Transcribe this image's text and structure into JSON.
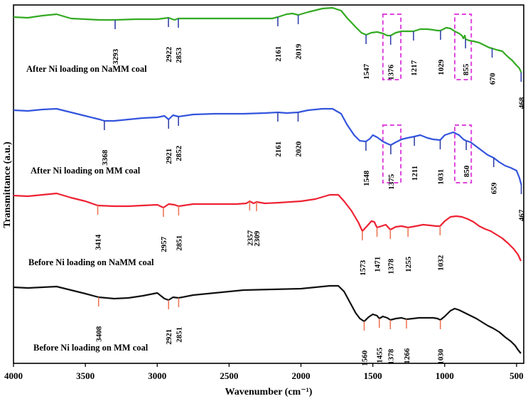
{
  "chart_data": {
    "type": "line",
    "xlabel": "Wavenumber (cm⁻¹)",
    "ylabel": "Transmittance  (a.u.)",
    "xlim": [
      4000,
      450
    ],
    "xticks": [
      "4000",
      "3500",
      "3000",
      "2500",
      "2000",
      "1500",
      "1000",
      "500"
    ],
    "series": [
      {
        "name": "After Ni loading on NaMM coal",
        "color": "#33aa22",
        "points": [
          [
            4000,
            24
          ],
          [
            3900,
            25
          ],
          [
            3800,
            22
          ],
          [
            3700,
            20
          ],
          [
            3600,
            26
          ],
          [
            3500,
            27
          ],
          [
            3400,
            28
          ],
          [
            3293,
            28
          ],
          [
            3150,
            27
          ],
          [
            3000,
            27
          ],
          [
            2922,
            25
          ],
          [
            2880,
            28
          ],
          [
            2853,
            26
          ],
          [
            2700,
            26
          ],
          [
            2500,
            26
          ],
          [
            2300,
            26
          ],
          [
            2200,
            26
          ],
          [
            2161,
            24
          ],
          [
            2100,
            20
          ],
          [
            2060,
            19
          ],
          [
            2019,
            21
          ],
          [
            1950,
            17
          ],
          [
            1850,
            12
          ],
          [
            1780,
            11
          ],
          [
            1720,
            15
          ],
          [
            1680,
            25
          ],
          [
            1620,
            38
          ],
          [
            1580,
            46
          ],
          [
            1547,
            49
          ],
          [
            1510,
            46
          ],
          [
            1470,
            45
          ],
          [
            1430,
            47
          ],
          [
            1400,
            50
          ],
          [
            1376,
            50
          ],
          [
            1340,
            46
          ],
          [
            1300,
            44
          ],
          [
            1260,
            44
          ],
          [
            1217,
            44
          ],
          [
            1170,
            41
          ],
          [
            1120,
            41
          ],
          [
            1080,
            42
          ],
          [
            1050,
            43
          ],
          [
            1029,
            43
          ],
          [
            990,
            39
          ],
          [
            960,
            40
          ],
          [
            930,
            44
          ],
          [
            900,
            47
          ],
          [
            880,
            50
          ],
          [
            870,
            54
          ],
          [
            860,
            50
          ],
          [
            855,
            55
          ],
          [
            830,
            57
          ],
          [
            800,
            58
          ],
          [
            760,
            60
          ],
          [
            720,
            64
          ],
          [
            690,
            67
          ],
          [
            670,
            68
          ],
          [
            640,
            70
          ],
          [
            600,
            72
          ],
          [
            560,
            80
          ],
          [
            530,
            85
          ],
          [
            500,
            92
          ],
          [
            480,
            96
          ],
          [
            468,
            102
          ]
        ],
        "peaks": [
          {
            "wn": 3293,
            "label": "3293",
            "y": 28
          },
          {
            "wn": 2922,
            "label": "2922",
            "y": 25
          },
          {
            "wn": 2853,
            "label": "2853",
            "y": 26
          },
          {
            "wn": 2161,
            "label": "2161",
            "y": 24
          },
          {
            "wn": 2019,
            "label": "2019",
            "y": 21
          },
          {
            "wn": 1547,
            "label": "1547",
            "y": 49
          },
          {
            "wn": 1376,
            "label": "1376",
            "y": 50
          },
          {
            "wn": 1217,
            "label": "1217",
            "y": 44
          },
          {
            "wn": 1029,
            "label": "1029",
            "y": 43
          },
          {
            "wn": 855,
            "label": "855",
            "y": 55
          },
          {
            "wn": 670,
            "label": "670",
            "y": 68
          },
          {
            "wn": 468,
            "label": "468",
            "y": 102
          }
        ]
      },
      {
        "name": "After Ni loading on MM coal",
        "color": "#3355dd",
        "points": [
          [
            4000,
            155
          ],
          [
            3900,
            156
          ],
          [
            3800,
            154
          ],
          [
            3700,
            153
          ],
          [
            3600,
            158
          ],
          [
            3500,
            163
          ],
          [
            3400,
            168
          ],
          [
            3368,
            170
          ],
          [
            3300,
            170
          ],
          [
            3200,
            168
          ],
          [
            3100,
            166
          ],
          [
            3000,
            165
          ],
          [
            2950,
            163
          ],
          [
            2921,
            168
          ],
          [
            2890,
            162
          ],
          [
            2852,
            164
          ],
          [
            2750,
            161
          ],
          [
            2600,
            160
          ],
          [
            2400,
            160
          ],
          [
            2250,
            159
          ],
          [
            2161,
            158
          ],
          [
            2100,
            159
          ],
          [
            2020,
            158
          ],
          [
            1950,
            155
          ],
          [
            1850,
            153
          ],
          [
            1780,
            153
          ],
          [
            1720,
            160
          ],
          [
            1680,
            175
          ],
          [
            1630,
            190
          ],
          [
            1590,
            198
          ],
          [
            1548,
            199
          ],
          [
            1520,
            195
          ],
          [
            1500,
            190
          ],
          [
            1470,
            193
          ],
          [
            1430,
            199
          ],
          [
            1400,
            202
          ],
          [
            1375,
            204
          ],
          [
            1340,
            200
          ],
          [
            1300,
            196
          ],
          [
            1260,
            194
          ],
          [
            1211,
            192
          ],
          [
            1170,
            190
          ],
          [
            1120,
            194
          ],
          [
            1080,
            196
          ],
          [
            1031,
            197
          ],
          [
            1000,
            190
          ],
          [
            970,
            188
          ],
          [
            940,
            186
          ],
          [
            900,
            190
          ],
          [
            870,
            196
          ],
          [
            850,
            198
          ],
          [
            820,
            200
          ],
          [
            780,
            206
          ],
          [
            740,
            212
          ],
          [
            700,
            218
          ],
          [
            659,
            222
          ],
          [
            620,
            228
          ],
          [
            580,
            233
          ],
          [
            540,
            236
          ],
          [
            500,
            240
          ],
          [
            480,
            250
          ],
          [
            467,
            260
          ]
        ],
        "peaks": [
          {
            "wn": 3368,
            "label": "3368",
            "y": 170
          },
          {
            "wn": 2921,
            "label": "2921",
            "y": 168
          },
          {
            "wn": 2852,
            "label": "2852",
            "y": 164
          },
          {
            "wn": 2161,
            "label": "2161",
            "y": 158
          },
          {
            "wn": 2020,
            "label": "2020",
            "y": 158
          },
          {
            "wn": 1548,
            "label": "1548",
            "y": 199
          },
          {
            "wn": 1375,
            "label": "1375",
            "y": 204
          },
          {
            "wn": 1211,
            "label": "1211",
            "y": 192
          },
          {
            "wn": 1031,
            "label": "1031",
            "y": 197
          },
          {
            "wn": 850,
            "label": "850",
            "y": 198
          },
          {
            "wn": 659,
            "label": "659",
            "y": 222
          },
          {
            "wn": 467,
            "label": "467",
            "y": 260
          }
        ]
      },
      {
        "name": "Before Ni loading on NaMM coal",
        "color": "#ee2233",
        "points": [
          [
            4000,
            275
          ],
          [
            3900,
            276
          ],
          [
            3800,
            274
          ],
          [
            3700,
            272
          ],
          [
            3600,
            278
          ],
          [
            3500,
            283
          ],
          [
            3414,
            289
          ],
          [
            3300,
            290
          ],
          [
            3200,
            290
          ],
          [
            3100,
            289
          ],
          [
            3000,
            288
          ],
          [
            2957,
            292
          ],
          [
            2920,
            287
          ],
          [
            2880,
            288
          ],
          [
            2851,
            290
          ],
          [
            2750,
            287
          ],
          [
            2600,
            287
          ],
          [
            2450,
            287
          ],
          [
            2380,
            286
          ],
          [
            2357,
            283
          ],
          [
            2330,
            286
          ],
          [
            2309,
            284
          ],
          [
            2250,
            286
          ],
          [
            2150,
            285
          ],
          [
            2000,
            283
          ],
          [
            1900,
            280
          ],
          [
            1800,
            274
          ],
          [
            1740,
            274
          ],
          [
            1700,
            283
          ],
          [
            1650,
            296
          ],
          [
            1600,
            313
          ],
          [
            1573,
            325
          ],
          [
            1540,
            318
          ],
          [
            1510,
            311
          ],
          [
            1490,
            312
          ],
          [
            1471,
            320
          ],
          [
            1440,
            318
          ],
          [
            1410,
            316
          ],
          [
            1378,
            323
          ],
          [
            1340,
            319
          ],
          [
            1300,
            318
          ],
          [
            1255,
            320
          ],
          [
            1200,
            318
          ],
          [
            1150,
            316
          ],
          [
            1100,
            317
          ],
          [
            1060,
            318
          ],
          [
            1032,
            318
          ],
          [
            1000,
            311
          ],
          [
            960,
            305
          ],
          [
            920,
            304
          ],
          [
            880,
            305
          ],
          [
            840,
            308
          ],
          [
            800,
            312
          ],
          [
            760,
            318
          ],
          [
            720,
            322
          ],
          [
            680,
            325
          ],
          [
            640,
            330
          ],
          [
            600,
            335
          ],
          [
            560,
            342
          ],
          [
            520,
            350
          ],
          [
            490,
            358
          ],
          [
            470,
            367
          ]
        ],
        "peaks": [
          {
            "wn": 3414,
            "label": "3414",
            "y": 289
          },
          {
            "wn": 2957,
            "label": "2957",
            "y": 292
          },
          {
            "wn": 2851,
            "label": "2851",
            "y": 290
          },
          {
            "wn": 2357,
            "label": "2357",
            "y": 283
          },
          {
            "wn": 2309,
            "label": "2309",
            "y": 284
          },
          {
            "wn": 1573,
            "label": "1573",
            "y": 325
          },
          {
            "wn": 1471,
            "label": "1471",
            "y": 320
          },
          {
            "wn": 1378,
            "label": "1378",
            "y": 323
          },
          {
            "wn": 1255,
            "label": "1255",
            "y": 320
          },
          {
            "wn": 1032,
            "label": "1032",
            "y": 318
          }
        ]
      },
      {
        "name": "Before Ni loading on MM coal",
        "color": "#111111",
        "points": [
          [
            4000,
            404
          ],
          [
            3900,
            405
          ],
          [
            3800,
            404
          ],
          [
            3700,
            403
          ],
          [
            3600,
            408
          ],
          [
            3500,
            413
          ],
          [
            3408,
            418
          ],
          [
            3300,
            420
          ],
          [
            3200,
            419
          ],
          [
            3100,
            416
          ],
          [
            3000,
            412
          ],
          [
            2950,
            420
          ],
          [
            2921,
            422
          ],
          [
            2890,
            418
          ],
          [
            2851,
            419
          ],
          [
            2750,
            415
          ],
          [
            2600,
            412
          ],
          [
            2400,
            408
          ],
          [
            2200,
            407
          ],
          [
            2000,
            406
          ],
          [
            1900,
            404
          ],
          [
            1800,
            402
          ],
          [
            1740,
            402
          ],
          [
            1700,
            410
          ],
          [
            1660,
            425
          ],
          [
            1620,
            440
          ],
          [
            1590,
            448
          ],
          [
            1560,
            452
          ],
          [
            1530,
            446
          ],
          [
            1500,
            442
          ],
          [
            1470,
            444
          ],
          [
            1455,
            448
          ],
          [
            1430,
            445
          ],
          [
            1400,
            447
          ],
          [
            1378,
            450
          ],
          [
            1340,
            448
          ],
          [
            1300,
            447
          ],
          [
            1266,
            449
          ],
          [
            1220,
            448
          ],
          [
            1180,
            447
          ],
          [
            1130,
            447
          ],
          [
            1080,
            447
          ],
          [
            1050,
            448
          ],
          [
            1030,
            450
          ],
          [
            1000,
            445
          ],
          [
            960,
            437
          ],
          [
            930,
            434
          ],
          [
            900,
            436
          ],
          [
            860,
            440
          ],
          [
            820,
            444
          ],
          [
            780,
            448
          ],
          [
            740,
            453
          ],
          [
            700,
            458
          ],
          [
            660,
            462
          ],
          [
            620,
            467
          ],
          [
            580,
            474
          ],
          [
            540,
            480
          ],
          [
            510,
            486
          ],
          [
            490,
            492
          ],
          [
            470,
            497
          ]
        ],
        "peaks": [
          {
            "wn": 3408,
            "label": "3408",
            "y": 418
          },
          {
            "wn": 2921,
            "label": "2921",
            "y": 422
          },
          {
            "wn": 2851,
            "label": "2851",
            "y": 419
          },
          {
            "wn": 1560,
            "label": "1560",
            "y": 452
          },
          {
            "wn": 1455,
            "label": "1455",
            "y": 448
          },
          {
            "wn": 1378,
            "label": "1378",
            "y": 450
          },
          {
            "wn": 1266,
            "label": "1266",
            "y": 449
          },
          {
            "wn": 1030,
            "label": "1030",
            "y": 450
          }
        ]
      }
    ],
    "highlight_boxes": [
      {
        "wn_from": 1430,
        "wn_to": 1305
      },
      {
        "wn_from": 930,
        "wn_to": 815
      },
      {
        "wn_from": 1430,
        "wn_to": 1305
      },
      {
        "wn_from": 930,
        "wn_to": 815
      }
    ],
    "highlight_color": "#dd44dd",
    "peak_tick_color_default": "#3344aa",
    "peak_tick_color_before": "#ee7755"
  }
}
